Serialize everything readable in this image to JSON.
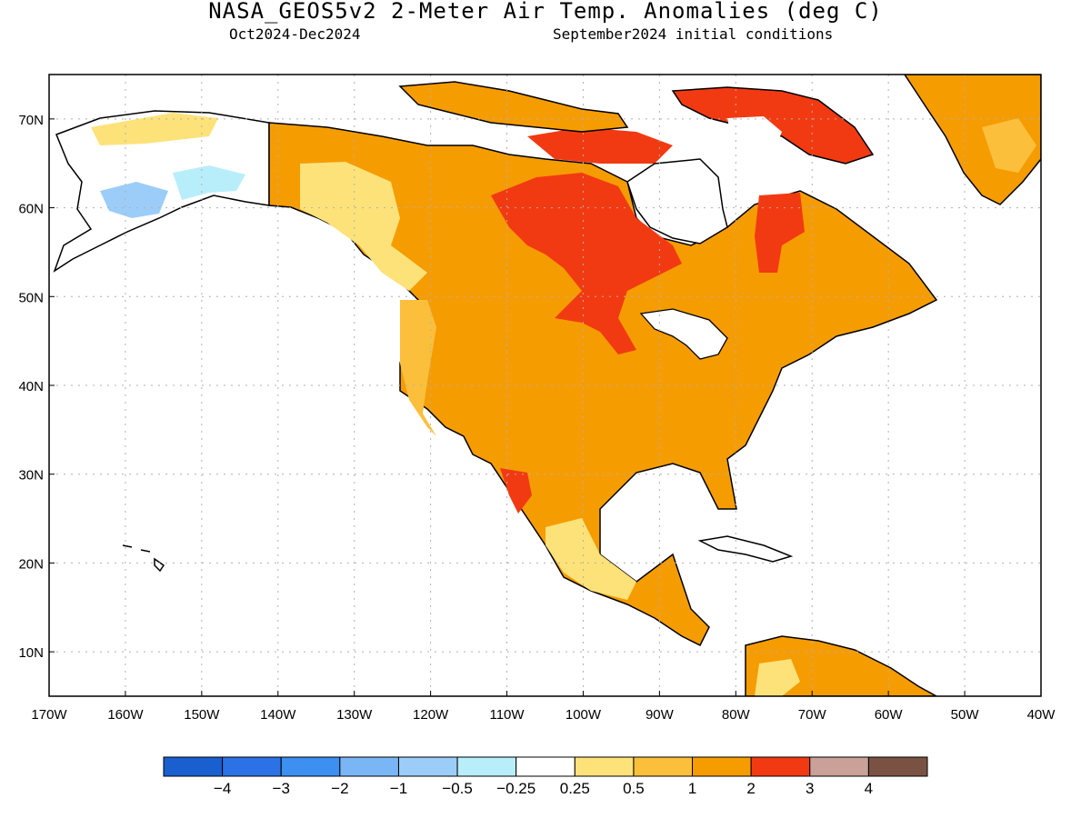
{
  "title": "NASA_GEOS5v2 2-Meter Air Temp. Anomalies (deg C)",
  "subtitle_left": "Oct2024-Dec2024",
  "subtitle_right": "September2024 initial conditions",
  "map": {
    "region": "North America",
    "lon_range": [
      -170,
      -40
    ],
    "lat_range": [
      5,
      75
    ],
    "lon_ticks": [
      "170W",
      "160W",
      "150W",
      "140W",
      "130W",
      "120W",
      "110W",
      "100W",
      "90W",
      "80W",
      "70W",
      "60W",
      "50W",
      "40W"
    ],
    "lat_ticks": [
      "10N",
      "20N",
      "30N",
      "40N",
      "50N",
      "60N",
      "70N"
    ]
  },
  "colorbar": {
    "colors": [
      "#1a5fd0",
      "#2a72e6",
      "#3d8ff0",
      "#7ab6f5",
      "#9ccdf8",
      "#b8eefa",
      "#ffffff",
      "#fde27a",
      "#fbbf3c",
      "#f59c00",
      "#f23a12",
      "#c9a199",
      "#7a5244"
    ],
    "labels": [
      "−4",
      "−3",
      "−2",
      "−1",
      "−0.5",
      "−0.25",
      "0.25",
      "0.5",
      "1",
      "2",
      "3",
      "4"
    ]
  },
  "colors": {
    "ocean": "#ffffff",
    "grid": "#b0b0b0",
    "coast": "#000000"
  }
}
